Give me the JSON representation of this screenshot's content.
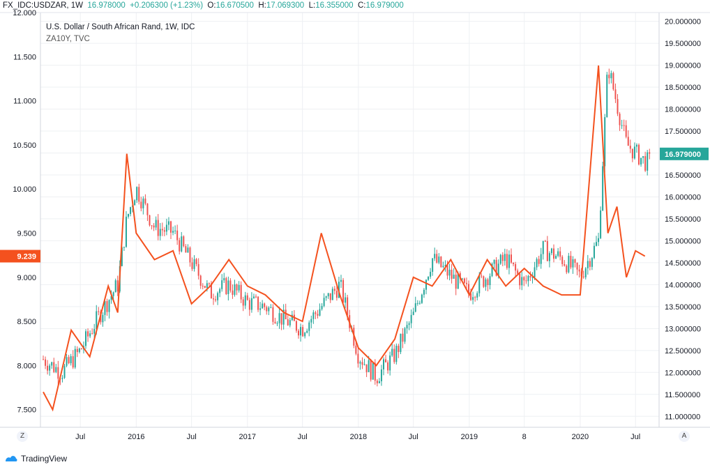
{
  "header": {
    "symbol": "FX_IDC:USDZAR, 1W",
    "last": "16.978000",
    "change": "+0.206300 (+1.23%)",
    "o_label": "O:",
    "o_value": "16.670500",
    "h_label": "H:",
    "h_value": "17.069300",
    "l_label": "L:",
    "l_value": "16.355000",
    "c_label": "C:",
    "c_value": "16.979000"
  },
  "legend": {
    "main": "U.S. Dollar / South African Rand, 1W, IDC",
    "overlay": "ZA10Y, TVC"
  },
  "footer": {
    "brand": "TradingView"
  },
  "corner_buttons": {
    "left": "Z",
    "right": "A"
  },
  "colors": {
    "up": "#26a69a",
    "down": "#ef5350",
    "overlay": "#f4511e",
    "grid": "#eef0f3",
    "axis_text": "#131722",
    "price_tag_bg": "#26a69a",
    "overlay_tag_bg": "#f4511e"
  },
  "chart_data": {
    "type": "line",
    "title": "U.S. Dollar / South African Rand, 1W, IDC",
    "grid": true,
    "x_tick_labels": [
      "Jul",
      "2016",
      "Jul",
      "2017",
      "Jul",
      "2018",
      "Jul",
      "2019",
      "8",
      "2020",
      "Jul"
    ],
    "left_axis": {
      "label": "ZA10Y",
      "ticks": [
        "12.000",
        "11.500",
        "11.000",
        "10.500",
        "10.000",
        "9.500",
        "9.000",
        "8.500",
        "8.000",
        "7.500"
      ],
      "ylim": [
        7.3,
        12.0
      ]
    },
    "right_axis": {
      "label": "USDZAR",
      "ticks": [
        "20.000000",
        "19.500000",
        "19.000000",
        "18.500000",
        "18.000000",
        "17.500000",
        "17.000000",
        "16.500000",
        "16.000000",
        "15.500000",
        "15.000000",
        "14.500000",
        "14.000000",
        "13.500000",
        "13.000000",
        "12.500000",
        "12.000000",
        "11.500000",
        "11.000000"
      ],
      "ylim": [
        10.75,
        20.2
      ]
    },
    "last_price_label": "16.979000",
    "last_overlay_label": "9.239",
    "series": [
      {
        "name": "U.S. Dollar / South African Rand",
        "kind": "weekly-close",
        "axis": "right",
        "x": [
          "2015-03",
          "2015-05",
          "2015-07",
          "2015-09",
          "2015-11",
          "2015-12",
          "2016-01",
          "2016-03",
          "2016-05",
          "2016-07",
          "2016-09",
          "2016-11",
          "2017-01",
          "2017-03",
          "2017-05",
          "2017-07",
          "2017-09",
          "2017-11",
          "2018-01",
          "2018-03",
          "2018-05",
          "2018-07",
          "2018-09",
          "2018-11",
          "2019-01",
          "2019-03",
          "2019-05",
          "2019-07",
          "2019-09",
          "2019-11",
          "2020-01",
          "2020-03",
          "2020-04",
          "2020-06",
          "2020-08"
        ],
        "values": [
          12.3,
          12.0,
          12.5,
          13.3,
          14.0,
          15.5,
          16.2,
          15.3,
          15.2,
          14.5,
          13.8,
          14.0,
          13.6,
          13.5,
          13.2,
          13.0,
          13.5,
          14.0,
          12.4,
          11.9,
          12.4,
          13.3,
          14.6,
          14.2,
          13.8,
          14.2,
          14.6,
          14.0,
          14.8,
          14.6,
          14.2,
          15.0,
          19.0,
          17.2,
          16.8
        ]
      },
      {
        "name": "ZA10Y",
        "kind": "line",
        "axis": "left",
        "x": [
          "2015-03",
          "2015-04",
          "2015-06",
          "2015-08",
          "2015-10",
          "2015-11",
          "2015-12",
          "2016-01",
          "2016-03",
          "2016-05",
          "2016-07",
          "2016-09",
          "2016-11",
          "2017-01",
          "2017-03",
          "2017-05",
          "2017-07",
          "2017-09",
          "2017-11",
          "2018-01",
          "2018-03",
          "2018-05",
          "2018-07",
          "2018-09",
          "2018-11",
          "2019-01",
          "2019-03",
          "2019-05",
          "2019-07",
          "2019-09",
          "2019-11",
          "2020-01",
          "2020-03",
          "2020-04",
          "2020-05",
          "2020-06",
          "2020-07",
          "2020-08"
        ],
        "values": [
          7.7,
          7.5,
          8.4,
          8.1,
          8.9,
          8.6,
          10.4,
          9.5,
          9.2,
          9.3,
          8.7,
          8.9,
          9.2,
          8.9,
          8.8,
          8.6,
          8.5,
          9.5,
          8.8,
          8.2,
          8.0,
          8.3,
          9.0,
          8.9,
          9.2,
          8.8,
          9.2,
          8.9,
          9.1,
          8.9,
          8.8,
          8.8,
          11.4,
          9.5,
          9.8,
          9.0,
          9.3,
          9.239
        ]
      }
    ]
  }
}
